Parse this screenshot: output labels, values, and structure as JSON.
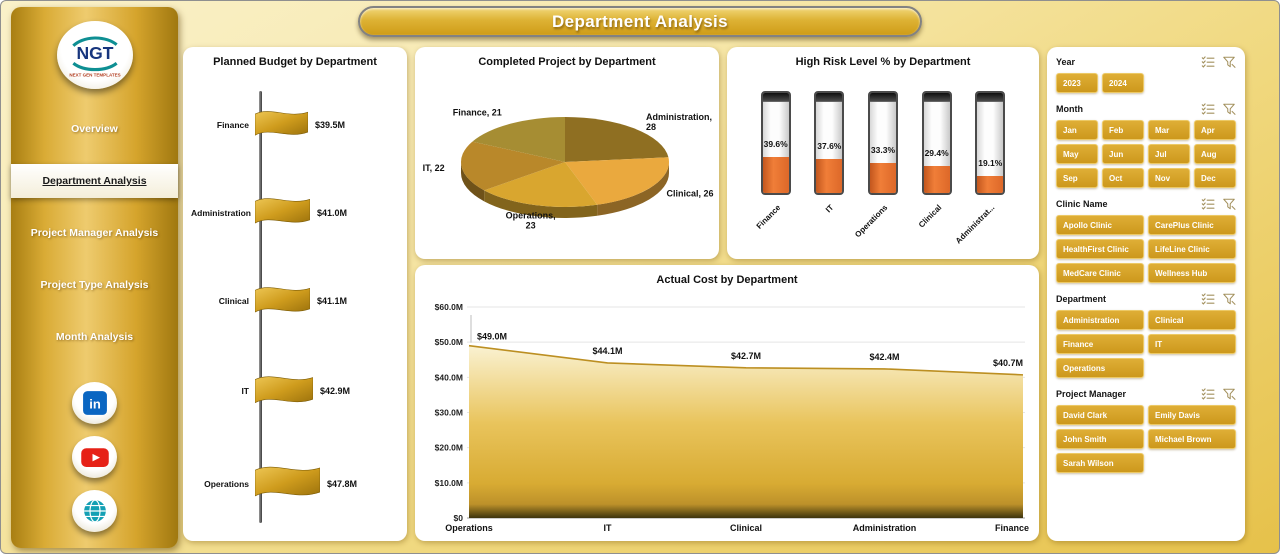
{
  "header": {
    "title": "Department Analysis"
  },
  "sidebar": {
    "logo_text": "NGT",
    "logo_subtext": "NEXT GEN TEMPLATES",
    "nav": [
      {
        "label": "Overview",
        "active": false
      },
      {
        "label": "Department Analysis",
        "active": true
      },
      {
        "label": "Project Manager Analysis",
        "active": false
      },
      {
        "label": "Project Type Analysis",
        "active": false
      },
      {
        "label": "Month Analysis",
        "active": false
      }
    ],
    "social": [
      {
        "name": "linkedin"
      },
      {
        "name": "youtube"
      },
      {
        "name": "website"
      }
    ]
  },
  "chart_data": [
    {
      "type": "bar",
      "style": "flag",
      "title": "Planned Budget by Department",
      "categories": [
        "Finance",
        "Administration",
        "Clinical",
        "IT",
        "Operations"
      ],
      "values": [
        39.5,
        41.0,
        41.1,
        42.9,
        47.8
      ],
      "labels": [
        "$39.5M",
        "$41.0M",
        "$41.1M",
        "$42.9M",
        "$47.8M"
      ],
      "unit": "USD millions"
    },
    {
      "type": "pie",
      "title": "Completed Project by Department",
      "categories": [
        "Administration",
        "Clinical",
        "Operations",
        "IT",
        "Finance"
      ],
      "values": [
        28,
        26,
        23,
        22,
        21
      ],
      "labels": [
        "Administration, 28",
        "Clinical, 26",
        "Operations, 23",
        "IT, 22",
        "Finance, 21"
      ],
      "colors": [
        "#8f6f22",
        "#eaa93e",
        "#d9a62f",
        "#b9882a",
        "#a68d33"
      ],
      "start_angle_deg": -90,
      "effect": "3d"
    },
    {
      "type": "bar",
      "style": "battery",
      "title": "High Risk Level % by Department",
      "categories": [
        "Finance",
        "IT",
        "Operations",
        "Clinical",
        "Administrat..."
      ],
      "values": [
        39.6,
        37.6,
        33.3,
        29.4,
        19.1
      ],
      "labels": [
        "39.6%",
        "37.6%",
        "33.3%",
        "29.4%",
        "19.1%"
      ],
      "fill_color": "#e06a2b"
    },
    {
      "type": "area",
      "title": "Actual Cost by Department",
      "categories": [
        "Operations",
        "IT",
        "Clinical",
        "Administration",
        "Finance"
      ],
      "values": [
        49.0,
        44.1,
        42.7,
        42.4,
        40.7
      ],
      "labels": [
        "$49.0M",
        "$44.1M",
        "$42.7M",
        "$42.4M",
        "$40.7M"
      ],
      "ylim": [
        0,
        60
      ],
      "yticks": [
        "$0",
        "$10.0M",
        "$20.0M",
        "$30.0M",
        "$40.0M",
        "$50.0M",
        "$60.0M"
      ],
      "grid": true,
      "legend": false
    }
  ],
  "filters": {
    "sections": [
      {
        "label": "Year",
        "cols": 4,
        "options": [
          "2023",
          "2024"
        ]
      },
      {
        "label": "Month",
        "cols": 4,
        "options": [
          "Jan",
          "Feb",
          "Mar",
          "Apr",
          "May",
          "Jun",
          "Jul",
          "Aug",
          "Sep",
          "Oct",
          "Nov",
          "Dec"
        ]
      },
      {
        "label": "Clinic Name",
        "cols": 2,
        "options": [
          "Apollo Clinic",
          "CarePlus Clinic",
          "HealthFirst Clinic",
          "LifeLine Clinic",
          "MedCare Clinic",
          "Wellness Hub"
        ]
      },
      {
        "label": "Department",
        "cols": 2,
        "options": [
          "Administration",
          "Clinical",
          "Finance",
          "IT",
          "Operations"
        ]
      },
      {
        "label": "Project Manager",
        "cols": 2,
        "options": [
          "David Clark",
          "Emily Davis",
          "John Smith",
          "Michael Brown",
          "Sarah Wilson"
        ]
      }
    ]
  },
  "colors": {
    "accent_gold": "#d5a42c",
    "slicer_button": "#d39f24",
    "battery_fill": "#e06a2b"
  }
}
